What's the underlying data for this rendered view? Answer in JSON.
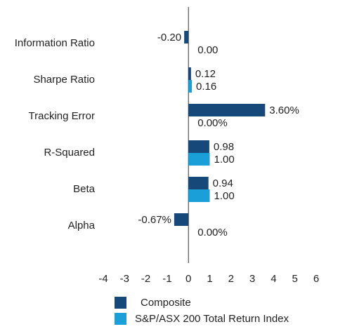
{
  "chart_data": {
    "type": "bar",
    "orientation": "horizontal",
    "categories": [
      "Information Ratio",
      "Sharpe Ratio",
      "Tracking Error",
      "R-Squared",
      "Beta",
      "Alpha"
    ],
    "series": [
      {
        "name": "Composite",
        "color": "#16487a",
        "values": [
          -0.2,
          0.12,
          3.6,
          0.98,
          0.94,
          -0.67
        ],
        "value_labels": [
          "-0.20",
          "0.12",
          "3.60%",
          "0.98",
          "0.94",
          "-0.67%"
        ]
      },
      {
        "name": "S&P/ASX 200 Total Return Index",
        "color": "#1a9fd9",
        "values": [
          0,
          0.16,
          0,
          1,
          1,
          0
        ],
        "value_labels": [
          "0.00",
          "0.16",
          "0.00%",
          "1.00",
          "1.00",
          "0.00%"
        ]
      }
    ],
    "xlim": [
      -4,
      6
    ],
    "xticks": [
      -4,
      -3,
      -2,
      -1,
      0,
      1,
      2,
      3,
      4,
      5,
      6
    ],
    "grid": false
  }
}
